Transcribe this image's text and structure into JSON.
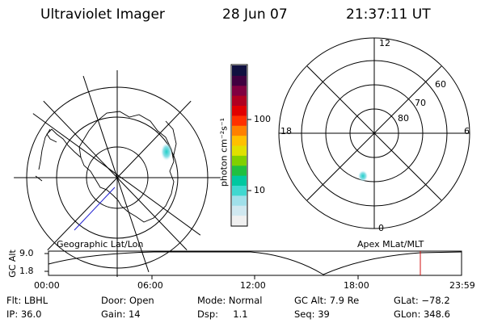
{
  "header": {
    "instrument": "Ultraviolet Imager",
    "date": "28 Jun 07",
    "time": "21:37:11 UT"
  },
  "colorbar": {
    "unit_label": "photon cm⁻²s⁻¹",
    "ticks": [
      "100",
      "10"
    ],
    "scale": "log",
    "colors": [
      "#f0f0f0",
      "#d0e8f0",
      "#a0e0ea",
      "#40d8d0",
      "#00c8a0",
      "#20c040",
      "#80d000",
      "#e0e000",
      "#ffc000",
      "#ff8000",
      "#ff3000",
      "#e00000",
      "#b00020",
      "#800040",
      "#400040",
      "#101040"
    ]
  },
  "left_map": {
    "caption": "Geographic Lat/Lon",
    "projection": "polar",
    "hemisphere": "south"
  },
  "right_map": {
    "caption": "Apex MLat/MLT",
    "mlt_labels": {
      "top": "12",
      "left": "18",
      "right": "6",
      "bottom": "0"
    },
    "lat_labels": [
      "60",
      "70",
      "80"
    ]
  },
  "alt_plot": {
    "ylabel": "GC Alt",
    "yticks": [
      "9.0",
      "1.8"
    ],
    "xticks": [
      "00:00",
      "06:00",
      "12:00",
      "18:00",
      "23:59"
    ],
    "current_time_marker_color": "#d01010"
  },
  "info": {
    "flt": "Flt: LBHL",
    "ip": "IP: 36.0",
    "door": "Door: Open",
    "gain": "Gain: 14",
    "mode": "Mode: Normal",
    "dsp": "Dsp:     1.1",
    "gcalt": "GC Alt: 7.9 Re",
    "seq": "Seq: 39",
    "glat": "GLat: −78.2",
    "glon": "GLon: 348.6"
  }
}
